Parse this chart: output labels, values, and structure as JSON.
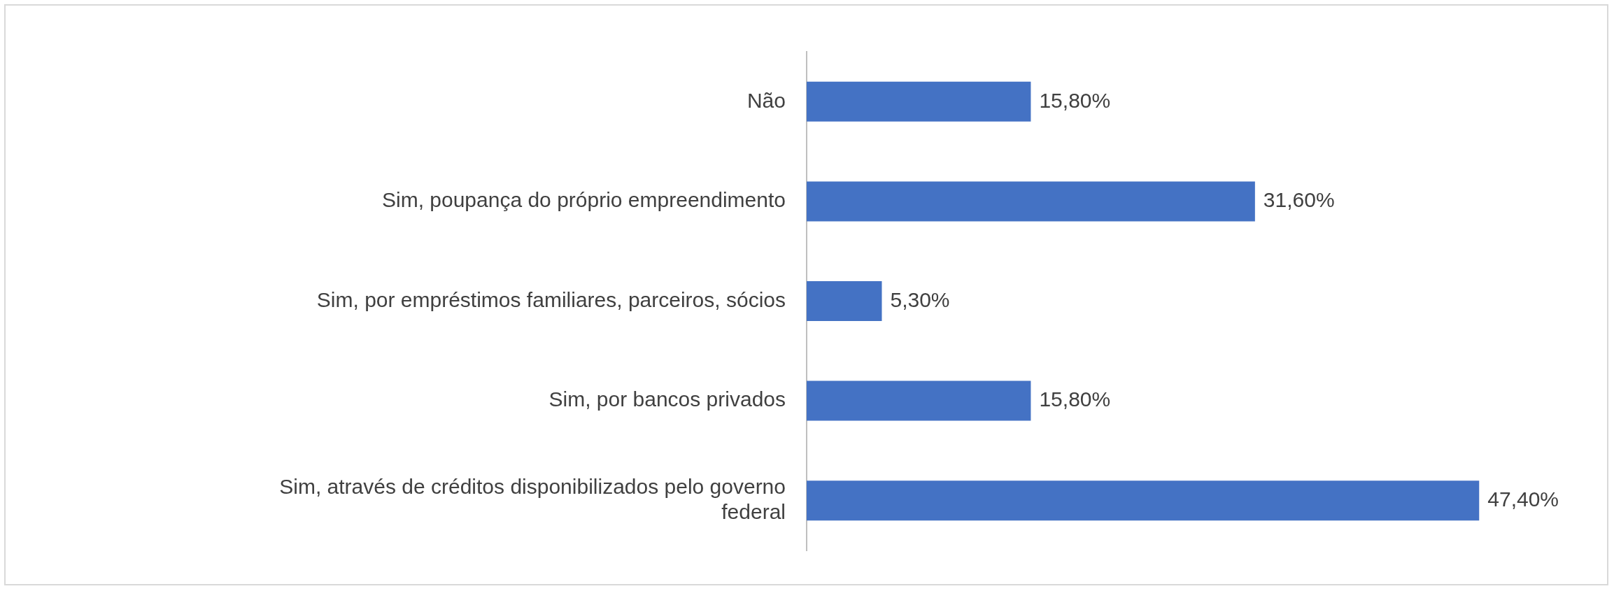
{
  "chart_data": {
    "type": "bar",
    "orientation": "horizontal",
    "categories": [
      "Não",
      "Sim, poupança do próprio empreendimento",
      "Sim, por empréstimos familiares, parceiros, sócios",
      "Sim, por bancos privados",
      "Sim, através de créditos disponibilizados pelo governo federal"
    ],
    "values": [
      15.8,
      31.6,
      5.3,
      15.8,
      47.4
    ],
    "value_labels": [
      "15,80%",
      "31,60%",
      "5,30%",
      "15,80%",
      "47,40%"
    ],
    "color": "#4472c4",
    "legend": false
  }
}
